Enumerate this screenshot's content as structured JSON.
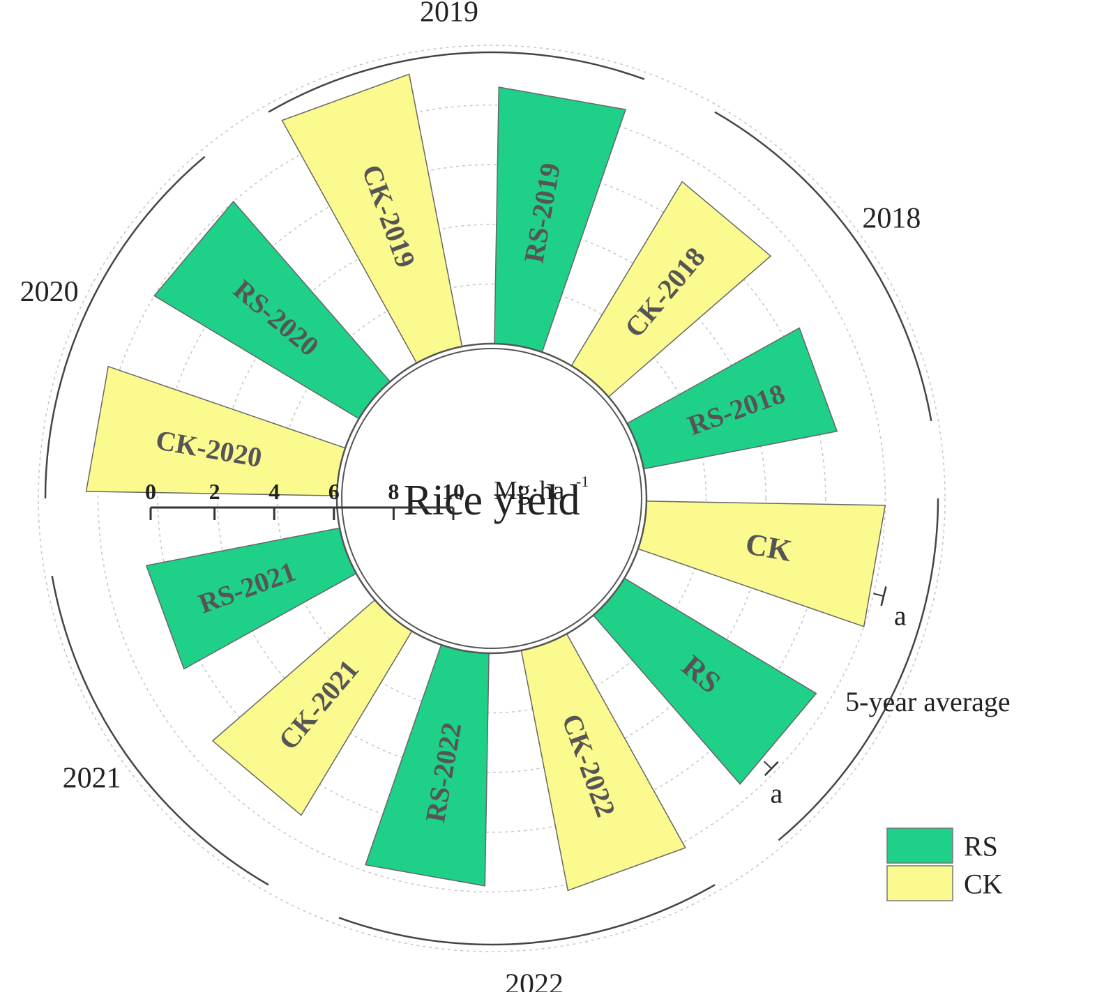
{
  "chart_data": {
    "type": "bar",
    "polar": true,
    "title": "Rice yield",
    "unit": "Mg·ha",
    "unit_sup": "-1",
    "scale": {
      "min": 0,
      "max": 10,
      "ticks": [
        "0",
        "2",
        "4",
        "6",
        "8",
        "10"
      ]
    },
    "grid": true,
    "bars": [
      {
        "label": "RS-2018",
        "series": "RS",
        "value": 6.6
      },
      {
        "label": "CK-2018",
        "series": "CK",
        "value": 7.2
      },
      {
        "label": "RS-2019",
        "series": "RS",
        "value": 8.6
      },
      {
        "label": "CK-2019",
        "series": "CK",
        "value": 9.3
      },
      {
        "label": "RS-2020",
        "series": "RS",
        "value": 8.0
      },
      {
        "label": "CK-2020",
        "series": "CK",
        "value": 8.4
      },
      {
        "label": "RS-2021",
        "series": "RS",
        "value": 6.6
      },
      {
        "label": "CK-2021",
        "series": "CK",
        "value": 7.2
      },
      {
        "label": "RS-2022",
        "series": "RS",
        "value": 7.8
      },
      {
        "label": "CK-2022",
        "series": "CK",
        "value": 8.2
      },
      {
        "label": "RS",
        "series": "RS",
        "value": 7.5,
        "error": 0.35,
        "significance": "a"
      },
      {
        "label": "CK",
        "series": "CK",
        "value": 8.0,
        "error": 0.35,
        "significance": "a"
      }
    ],
    "groups": [
      {
        "label": "2018"
      },
      {
        "label": "2019"
      },
      {
        "label": "2020"
      },
      {
        "label": "2021"
      },
      {
        "label": "2022"
      },
      {
        "label": "5-year average"
      }
    ],
    "legend": {
      "position": "bottom-right",
      "items": [
        {
          "label": "RS",
          "series": "RS"
        },
        {
          "label": "CK",
          "series": "CK"
        }
      ]
    },
    "colors": {
      "RS": "#1fd088",
      "CK": "#fafa8e",
      "bar_text": "#555555",
      "grid": "#c8c8c8",
      "axis": "#333333"
    }
  }
}
